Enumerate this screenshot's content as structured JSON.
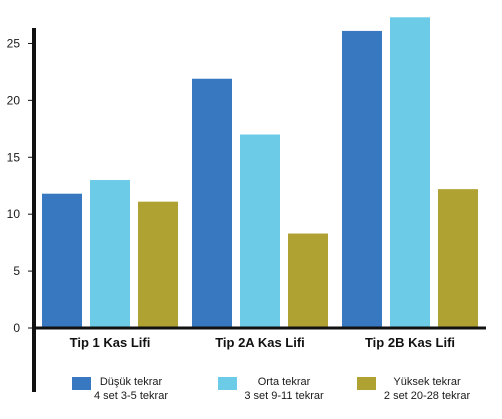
{
  "chart_data": {
    "type": "bar",
    "title": "",
    "xlabel": "",
    "ylabel": "",
    "ylim": [
      0,
      27.5
    ],
    "yticks": [
      0,
      5,
      10,
      15,
      20,
      25
    ],
    "grid": false,
    "legend_placement": "bottom",
    "categories": [
      "Tip 1 Kas Lifi",
      "Tip 2A Kas Lifi",
      "Tip 2B Kas Lifi"
    ],
    "series": [
      {
        "name": "Düşük tekrar",
        "sub": "4 set 3-5 tekrar",
        "color": "#3878c0",
        "values": [
          11.8,
          21.9,
          26.1
        ]
      },
      {
        "name": "Orta tekrar",
        "sub": "3 set 9-11 tekrar",
        "color": "#6ccbe6",
        "values": [
          13.0,
          17.0,
          27.3
        ]
      },
      {
        "name": "Yüksek tekrar",
        "sub": "2 set 20-28 tekrar",
        "color": "#b0a232",
        "values": [
          11.1,
          8.3,
          12.2
        ]
      }
    ]
  }
}
